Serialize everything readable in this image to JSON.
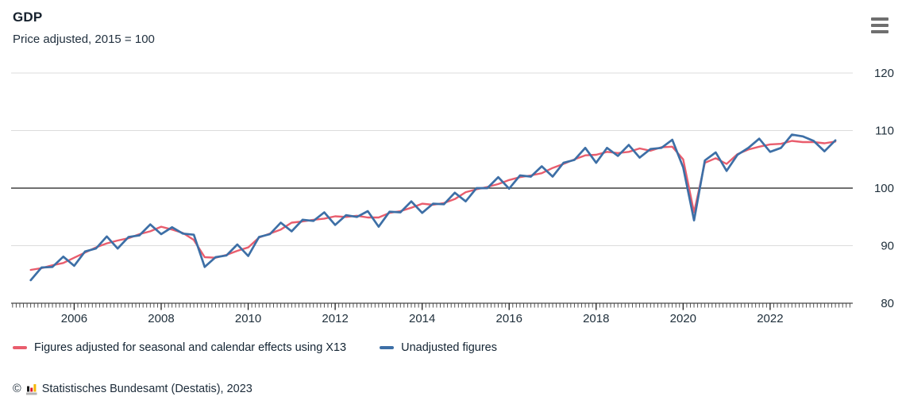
{
  "header": {
    "title": "GDP",
    "subtitle": "Price adjusted, 2015 = 100"
  },
  "icons": {
    "menu_icon": "hamburger-menu-icon",
    "logo_icon": "destatis-bar-chart-logo"
  },
  "chart_data": {
    "type": "line",
    "title": "GDP",
    "subtitle": "Price adjusted, 2015 = 100",
    "x_unit": "quarterly, decimal years",
    "x_start_year": 2005,
    "quarter_step": 0.25,
    "xlabel": "",
    "ylabel": "",
    "ylim": [
      80,
      120
    ],
    "y_tick_labels": [
      "120",
      "110",
      "100",
      "90",
      "80"
    ],
    "y_ticks": [
      120,
      110,
      100,
      90,
      80
    ],
    "x_tick_years": [
      2006,
      2008,
      2010,
      2012,
      2014,
      2016,
      2018,
      2020,
      2022
    ],
    "x_tick_labels": [
      "2006",
      "2008",
      "2010",
      "2012",
      "2014",
      "2016",
      "2018",
      "2020",
      "2022"
    ],
    "reference_line": 100,
    "grid": "horizontal-light",
    "legend_position": "bottom-left",
    "colors": {
      "grid": "#dcdcdc",
      "axis": "#1a1a1a",
      "reference": "#1a1a1a",
      "tick": "#444444"
    },
    "series": [
      {
        "name": "Figures adjusted for seasonal and calendar effects using X13",
        "color": "#e95d6d",
        "values": [
          85.8,
          86.1,
          86.6,
          87.0,
          87.9,
          88.8,
          89.7,
          90.4,
          90.9,
          91.3,
          92.0,
          92.5,
          93.3,
          92.8,
          92.2,
          91.0,
          88.0,
          87.9,
          88.4,
          89.1,
          89.7,
          91.4,
          92.1,
          92.8,
          94.0,
          94.2,
          94.5,
          94.7,
          95.1,
          95.0,
          95.2,
          94.9,
          94.9,
          95.7,
          96.0,
          96.6,
          97.3,
          97.1,
          97.4,
          98.1,
          99.3,
          99.8,
          100.2,
          100.7,
          101.4,
          101.9,
          102.2,
          102.6,
          103.5,
          104.2,
          105.0,
          105.7,
          105.8,
          106.3,
          106.1,
          106.3,
          106.9,
          106.5,
          107.1,
          107.2,
          105.0,
          95.8,
          104.4,
          105.2,
          104.2,
          105.9,
          106.7,
          107.2,
          107.6,
          107.7,
          108.2,
          108.0,
          108.0,
          107.8,
          108.1
        ]
      },
      {
        "name": "Unadjusted figures",
        "color": "#3d6fa6",
        "values": [
          84.0,
          86.2,
          86.3,
          88.1,
          86.5,
          89.0,
          89.5,
          91.6,
          89.5,
          91.5,
          91.8,
          93.7,
          92.0,
          93.2,
          92.1,
          91.9,
          86.3,
          88.0,
          88.3,
          90.2,
          88.2,
          91.5,
          92.0,
          94.0,
          92.5,
          94.5,
          94.3,
          95.8,
          93.6,
          95.3,
          95.0,
          96.0,
          93.3,
          95.9,
          95.8,
          97.7,
          95.7,
          97.3,
          97.2,
          99.2,
          97.7,
          100.0,
          100.0,
          101.9,
          99.9,
          102.2,
          102.0,
          103.8,
          102.0,
          104.4,
          104.9,
          107.0,
          104.4,
          107.0,
          105.6,
          107.5,
          105.3,
          106.8,
          107.0,
          108.4,
          103.6,
          94.4,
          104.8,
          106.2,
          103.0,
          105.8,
          107.0,
          108.6,
          106.3,
          107.0,
          109.3,
          109.0,
          108.2,
          106.4,
          108.3
        ]
      }
    ]
  },
  "legend": {
    "items": [
      {
        "label": "Figures adjusted for seasonal and calendar effects using X13",
        "color": "#e95d6d"
      },
      {
        "label": "Unadjusted figures",
        "color": "#3d6fa6"
      }
    ]
  },
  "footer": {
    "copyright_symbol": "©",
    "source": "Statistisches Bundesamt (Destatis), 2023"
  }
}
